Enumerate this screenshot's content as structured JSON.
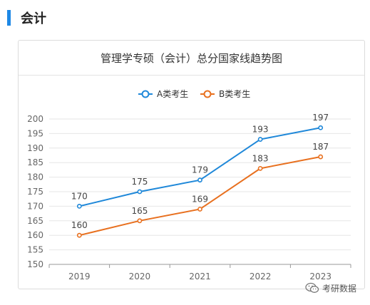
{
  "section": {
    "title": "会计"
  },
  "watermark": {
    "text": "考研数据"
  },
  "colors": {
    "accent": "#1e88e5",
    "series_a": "#1f88d9",
    "series_b": "#e8701f"
  },
  "chart_data": {
    "type": "line",
    "title": "管理学专硕（会计）总分国家线趋势图",
    "categories": [
      "2019",
      "2020",
      "2021",
      "2022",
      "2023"
    ],
    "series": [
      {
        "name": "A类考生",
        "values": [
          170,
          175,
          179,
          193,
          197
        ],
        "color": "#1f88d9"
      },
      {
        "name": "B类考生",
        "values": [
          160,
          165,
          169,
          183,
          187
        ],
        "color": "#e8701f"
      }
    ],
    "ylim": [
      150,
      200
    ],
    "yticks": [
      150,
      155,
      160,
      165,
      170,
      175,
      180,
      185,
      190,
      195,
      200
    ],
    "grid": true,
    "legend": "top-center",
    "data_labels": true
  }
}
